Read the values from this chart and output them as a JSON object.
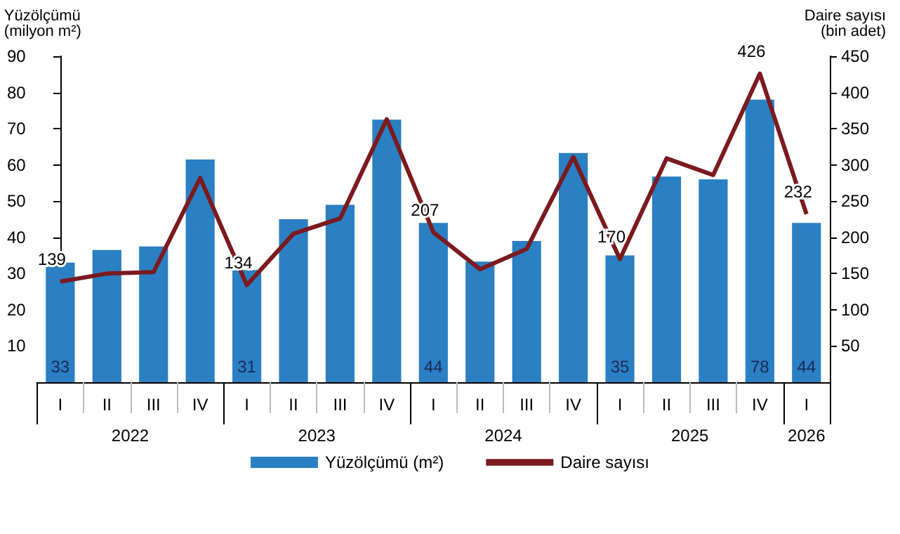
{
  "chart_data": {
    "type": "bar",
    "ylabel": "Yüzölçümü\n(milyon m²)",
    "y2label": "Daire sayısı\n(bin adet)",
    "categories": [
      "I",
      "II",
      "III",
      "IV",
      "I",
      "II",
      "III",
      "IV",
      "I",
      "II",
      "III",
      "IV",
      "I",
      "II",
      "III",
      "IV",
      "I"
    ],
    "annotations": [
      "2022",
      "2023",
      "2024",
      "2025",
      "2026"
    ],
    "series": [
      {
        "name": "Yüzölçümü (m²)",
        "color": "#2b7fc3",
        "values": [
          33,
          36.5,
          37.5,
          61.5,
          31,
          45,
          49,
          72.5,
          44,
          33.3,
          39,
          63.3,
          35,
          56.8,
          56,
          78,
          44
        ],
        "value_labels": [
          "33",
          null,
          null,
          null,
          "31",
          null,
          null,
          null,
          "44",
          null,
          null,
          null,
          "35",
          null,
          null,
          "78",
          "44"
        ]
      },
      {
        "name": "Daire sayısı",
        "type": "line",
        "axis": "y2",
        "color": "#7b1a1f",
        "values": [
          139,
          150,
          152,
          282,
          134,
          205,
          226,
          363,
          207,
          156,
          184,
          311,
          170,
          309,
          286,
          426,
          232
        ],
        "value_labels": [
          "139",
          null,
          null,
          null,
          "134",
          null,
          null,
          null,
          "207",
          null,
          null,
          null,
          "170",
          null,
          null,
          "426",
          "232"
        ]
      }
    ],
    "ylim": [
      0,
      90
    ],
    "yticks": [
      10,
      20,
      30,
      40,
      50,
      60,
      70,
      80,
      90
    ],
    "y2lim": [
      0,
      450
    ],
    "y2ticks": [
      50,
      100,
      150,
      200,
      250,
      300,
      350,
      400,
      450
    ],
    "legend": "bottom",
    "grid": false,
    "marker": "none"
  }
}
